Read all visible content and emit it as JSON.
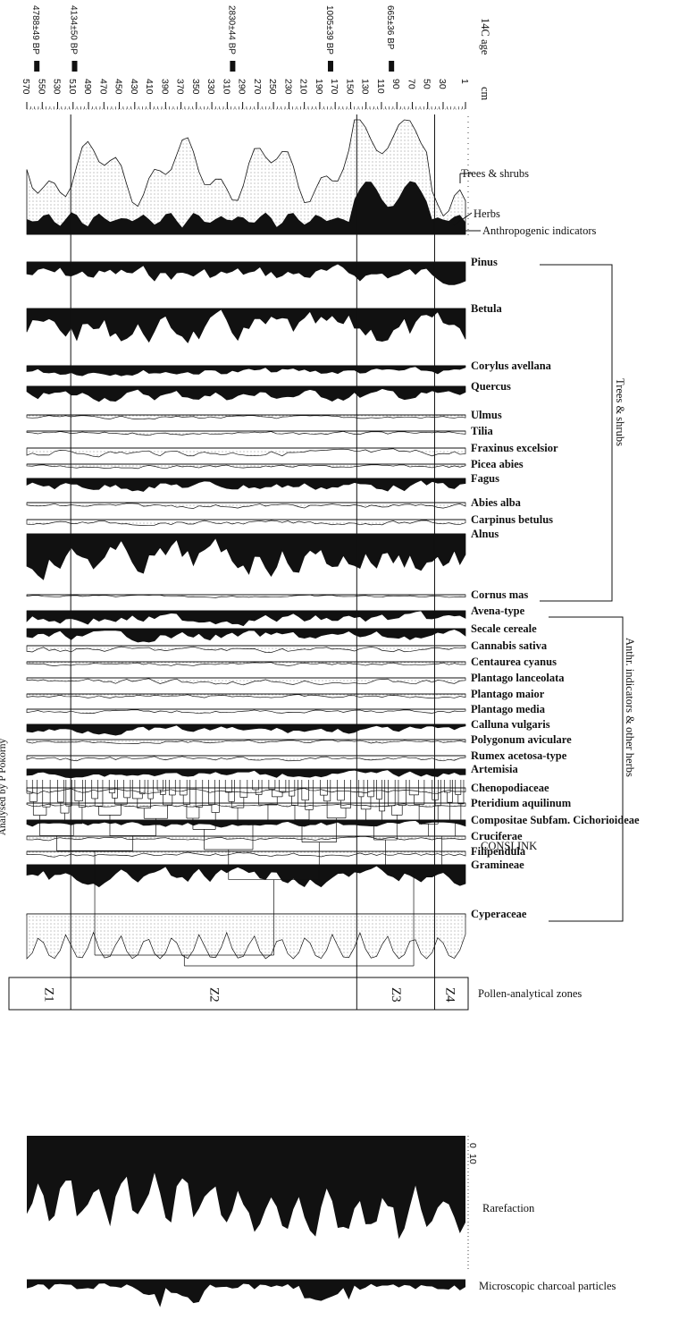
{
  "chart_data": {
    "type": "area",
    "title": "",
    "depth_axis": {
      "label": "cm",
      "ticks": [
        "570",
        "550",
        "530",
        "510",
        "490",
        "470",
        "450",
        "430",
        "410",
        "390",
        "370",
        "350",
        "330",
        "310",
        "290",
        "270",
        "250",
        "230",
        "210",
        "190",
        "170",
        "150",
        "130",
        "110",
        "90",
        "70",
        "50",
        "30",
        "1"
      ],
      "range": [
        570,
        1
      ]
    },
    "dates_header": "14C age",
    "dates": [
      {
        "label": "4788±49 BP",
        "depth": 557
      },
      {
        "label": "4134±50 BP",
        "depth": 508
      },
      {
        "label": "2830±44 BP",
        "depth": 303
      },
      {
        "label": "1005±39 BP",
        "depth": 176
      },
      {
        "label": "665±36 BP",
        "depth": 97
      }
    ],
    "zone_boundaries_depth": [
      513,
      142,
      41
    ],
    "zones": [
      {
        "label": "Z1",
        "from": 570,
        "to": 513
      },
      {
        "label": "Z2",
        "from": 513,
        "to": 142
      },
      {
        "label": "Z3",
        "from": 142,
        "to": 41
      },
      {
        "label": "Z4",
        "from": 41,
        "to": 1
      }
    ],
    "summary_curves": [
      "Trees & shrubs",
      "Herbs",
      "Anthropogenic indicators"
    ],
    "taxa_groups": [
      {
        "name": "Trees & shrubs",
        "taxa": [
          "Pinus",
          "Betula",
          "Corylus avellana",
          "Quercus",
          "Ulmus",
          "Tilia",
          "Fraxinus excelsior",
          "Picea abies",
          "Fagus",
          "Abies alba",
          "Carpinus betulus",
          "Alnus",
          "Cornus mas"
        ]
      },
      {
        "name": "Anthr. indicators & other herbs",
        "taxa": [
          "Avena-type",
          "Secale cereale",
          "Cannabis sativa",
          "Centaurea cyanus",
          "Plantago lanceolata",
          "Plantago maior",
          "Plantago media",
          "Calluna vulgaris",
          "Polygonum aviculare",
          "Rumex acetosa-type",
          "Artemisia",
          "Chenopodiaceae",
          "Pteridium aquilinum",
          "Compositae Subfam. Cichorioideae",
          "Cruciferae",
          "Filipendula",
          "Gramineae",
          "Cyperaceae"
        ]
      }
    ],
    "cluster_label": "CONSLINK",
    "zones_label": "Pollen-analytical zones",
    "rarefaction": {
      "label": "Rarefaction",
      "ticks": [
        "0",
        "10"
      ]
    },
    "charcoal_label": "Microscopic charcoal particles",
    "credit": "Analysed by P Pokorný"
  },
  "labels": {
    "dates_header": "14C age",
    "depth_unit": "cm",
    "trees_shrubs": "Trees & shrubs",
    "herbs": "Herbs",
    "anthropogenic": "Anthropogenic indicators",
    "group_trees": "Trees & shrubs",
    "group_herbs": "Anthr. indicators & other herbs",
    "conslink": "CONSLINK",
    "zones": "Pollen-analytical zones",
    "rarefaction": "Rarefaction",
    "rare_tick_0": "0",
    "rare_tick_10": "10",
    "charcoal": "Microscopic charcoal particles",
    "credit": "Analysed by P Pokorný"
  }
}
